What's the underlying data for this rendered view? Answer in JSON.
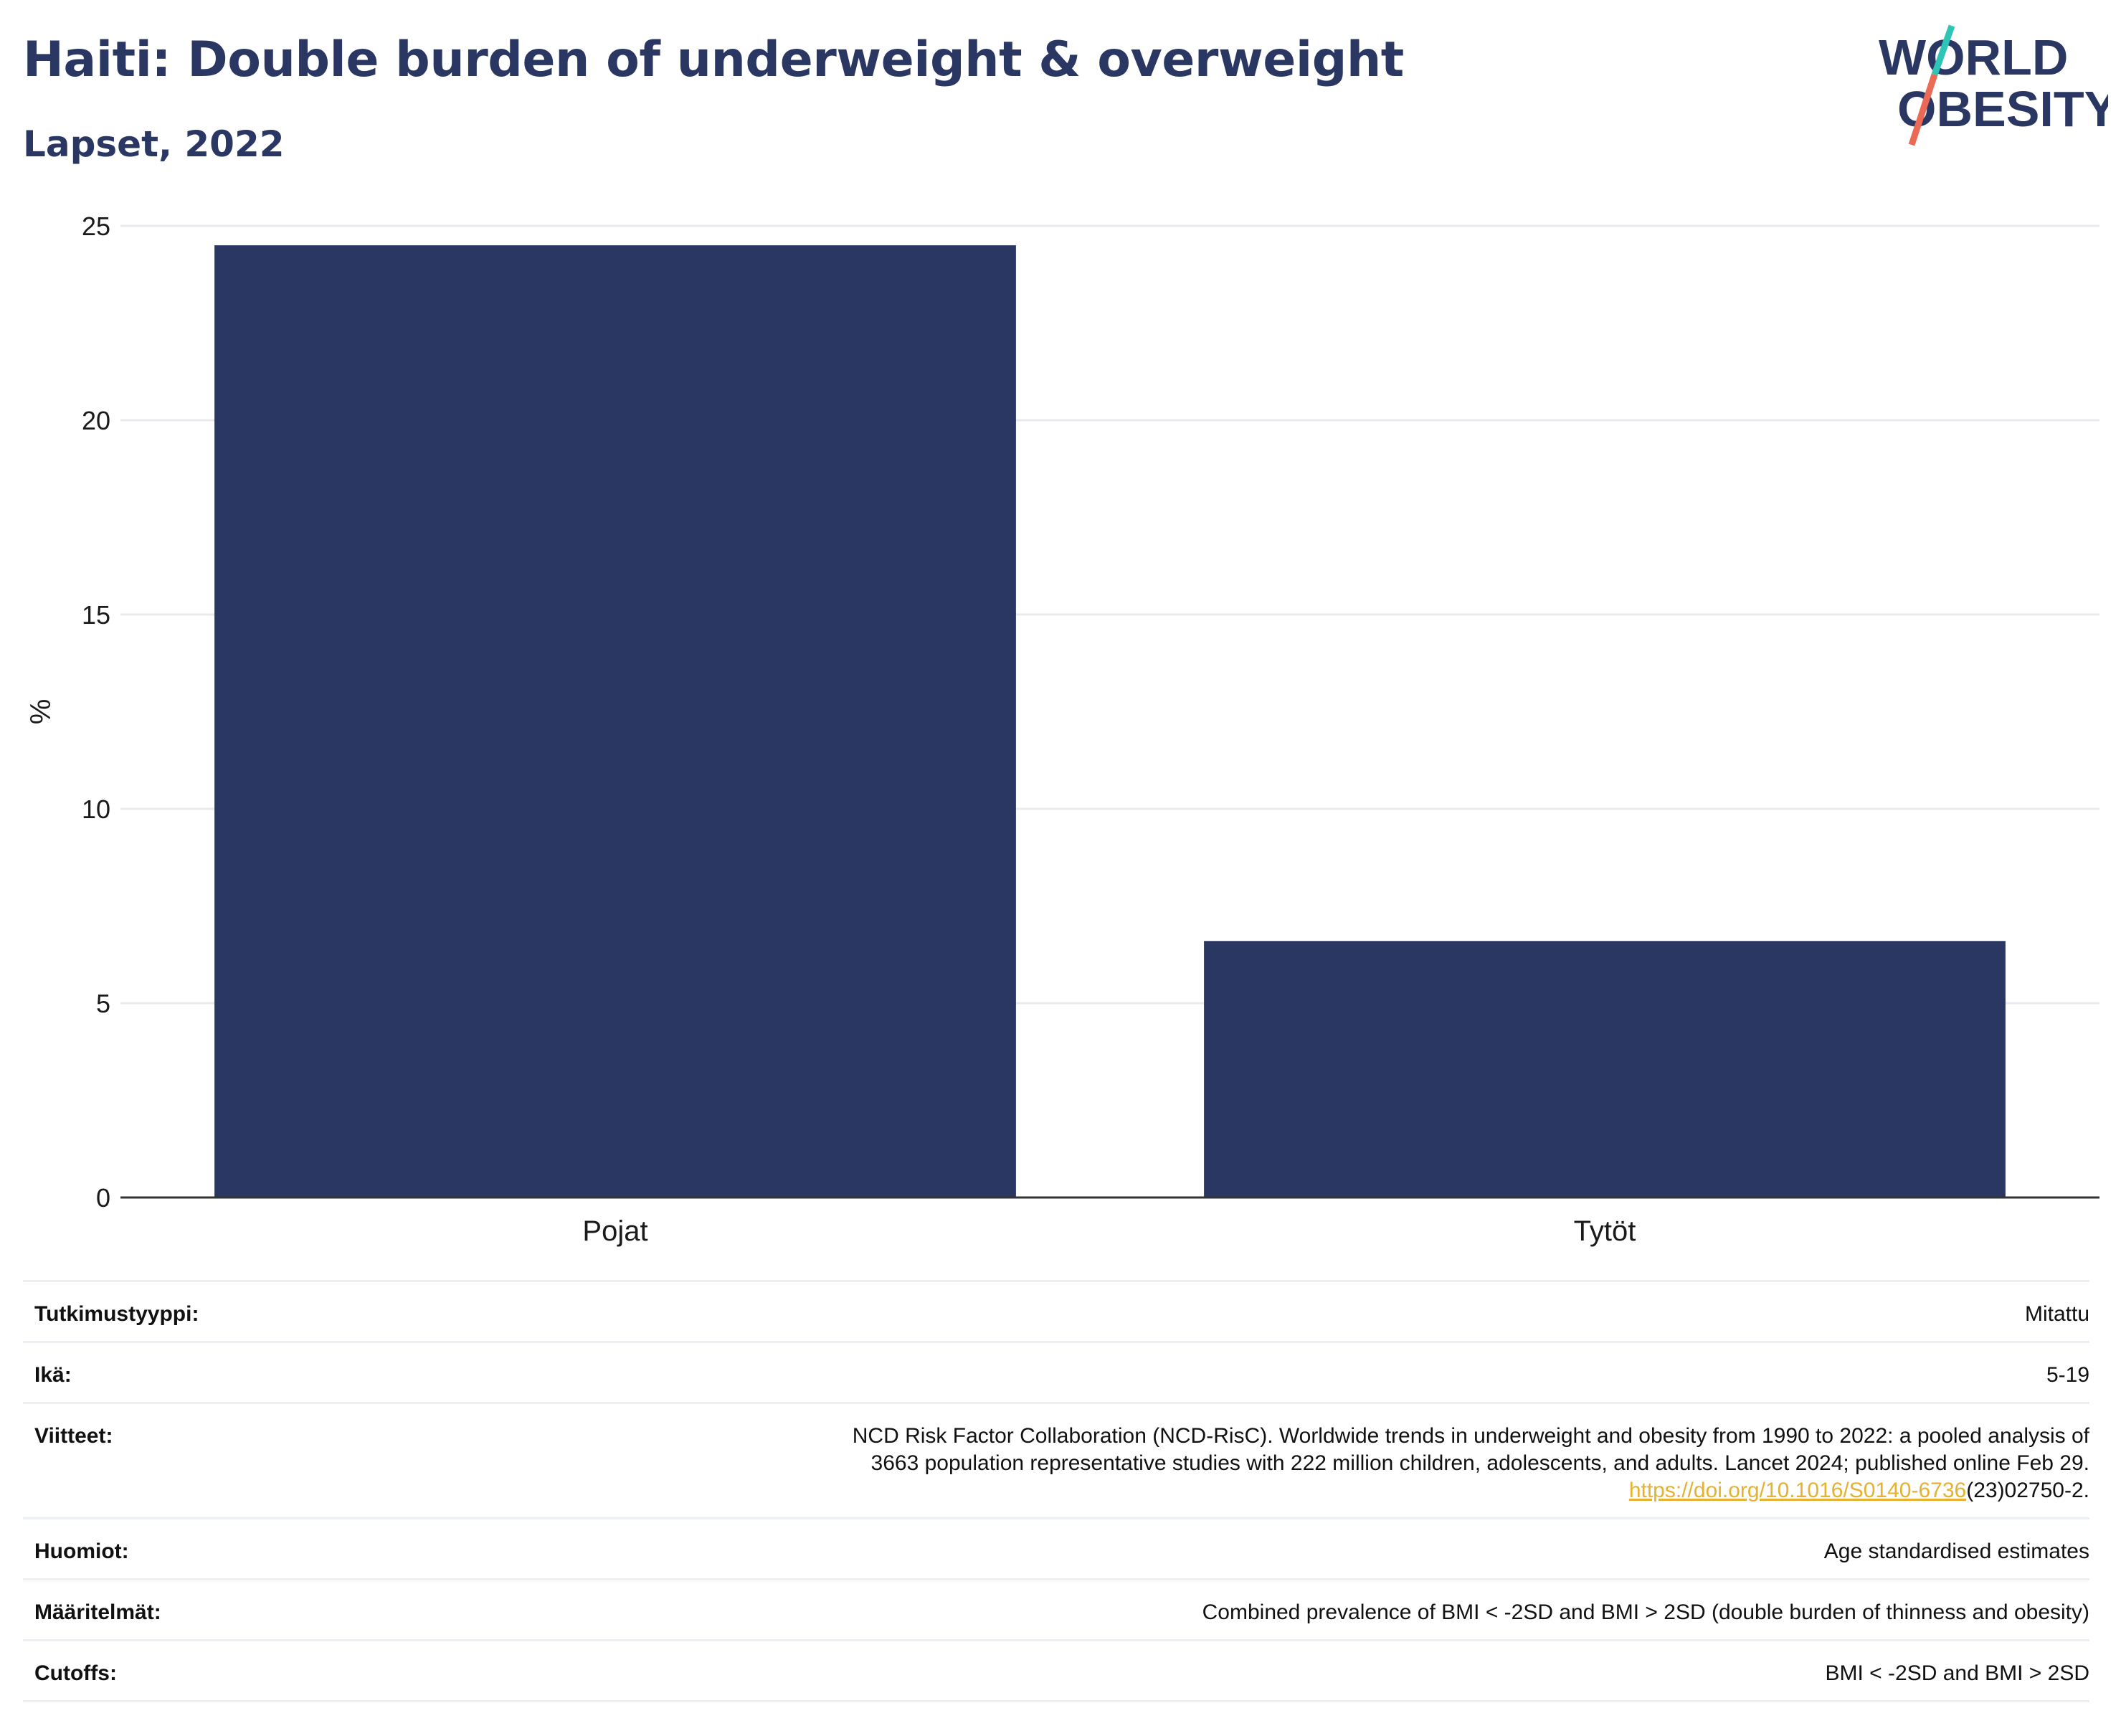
{
  "header": {
    "title": "Haiti: Double burden of underweight & overweight",
    "subtitle": "Lapset, 2022"
  },
  "logo": {
    "line1": "WORLD",
    "line2": "OBESITY"
  },
  "colors": {
    "bar": "#2b3763",
    "text": "#2b3763",
    "link": "#e6b12f",
    "logo_teal": "#2ec4b6",
    "logo_coral": "#ea6a55"
  },
  "chart_data": {
    "type": "bar",
    "categories": [
      "Pojat",
      "Tytöt"
    ],
    "values": [
      24.5,
      6.6
    ],
    "ylabel": "%",
    "ylim": [
      0,
      25
    ],
    "yticks": [
      0,
      5,
      10,
      15,
      20,
      25
    ],
    "grid": true
  },
  "info": {
    "rows": [
      {
        "key": "Tutkimustyyppi:",
        "value": "Mitattu"
      },
      {
        "key": "Ikä:",
        "value": "5-19"
      },
      {
        "key": "Viitteet:",
        "value_line1": "NCD Risk Factor Collaboration (NCD-RisC). Worldwide trends in underweight and obesity from 1990 to 2022: a pooled analysis of",
        "value_line2": "3663 population representative studies with 222 million children, adolescents, and adults. Lancet 2024; published online Feb 29.",
        "link": "https://doi.org/10.1016/S0140-6736",
        "link_suffix": "(23)02750-2."
      },
      {
        "key": "Huomiot:",
        "value": "Age standardised estimates"
      },
      {
        "key": "Määritelmät:",
        "value": "Combined prevalence of BMI < -2SD and BMI > 2SD (double burden of thinness and obesity)"
      },
      {
        "key": "Cutoffs:",
        "value": "BMI < -2SD and BMI > 2SD"
      }
    ]
  }
}
